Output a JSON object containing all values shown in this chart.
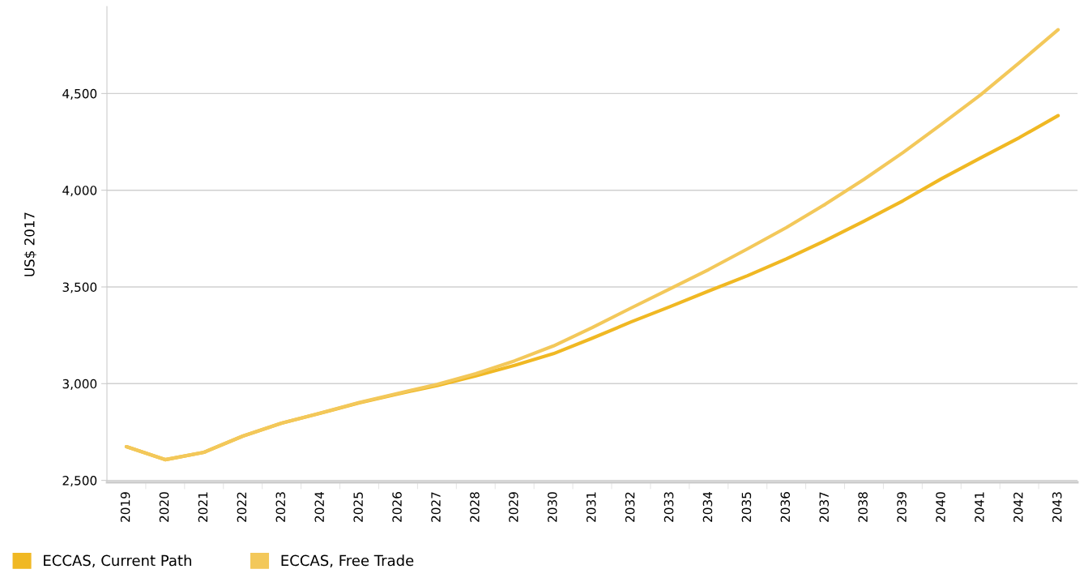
{
  "chart_data": {
    "type": "line",
    "ylabel": "US$ 2017",
    "categories": [
      "2019",
      "2020",
      "2021",
      "2022",
      "2023",
      "2024",
      "2025",
      "2026",
      "2027",
      "2028",
      "2029",
      "2030",
      "2031",
      "2032",
      "2033",
      "2034",
      "2035",
      "2036",
      "2037",
      "2038",
      "2039",
      "2040",
      "2041",
      "2042",
      "2043"
    ],
    "series": [
      {
        "name": "ECCAS, Current Path",
        "color": "#f0b823",
        "values": [
          2674,
          2607,
          2645,
          2729,
          2796,
          2847,
          2901,
          2947,
          2990,
          3040,
          3095,
          3155,
          3235,
          3319,
          3398,
          3479,
          3558,
          3645,
          3739,
          3840,
          3945,
          4060,
          4167,
          4272,
          4386
        ]
      },
      {
        "name": "ECCAS, Free Trade",
        "color": "#f3c85a",
        "values": [
          2674,
          2607,
          2645,
          2729,
          2796,
          2848,
          2903,
          2950,
          2996,
          3052,
          3118,
          3195,
          3290,
          3391,
          3490,
          3590,
          3697,
          3807,
          3927,
          4056,
          4194,
          4342,
          4493,
          4659,
          4830
        ]
      }
    ],
    "ylim": [
      2490,
      4950
    ],
    "yticks": [
      {
        "value": 2500,
        "label": "2,500"
      },
      {
        "value": 3000,
        "label": "3,000"
      },
      {
        "value": 3500,
        "label": "3,500"
      },
      {
        "value": 4000,
        "label": "4,000"
      },
      {
        "value": 4500,
        "label": "4,500"
      }
    ],
    "grid": "y",
    "legend": "bottom left",
    "marker": "none",
    "line_style": "solid"
  }
}
